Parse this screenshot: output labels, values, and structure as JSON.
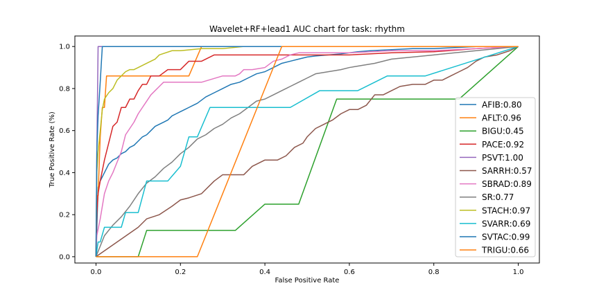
{
  "chart_data": {
    "type": "line",
    "title": "Wavelet+RF+lead1 AUC chart for task: rhythm",
    "xlabel": "False Positive Rate",
    "ylabel": "True Positive Rate (%)",
    "xlim": [
      -0.05,
      1.05
    ],
    "ylim": [
      -0.03,
      1.05
    ],
    "xticks": [
      0.0,
      0.2,
      0.4,
      0.6,
      0.8,
      1.0
    ],
    "xtick_labels": [
      "0.0",
      "0.2",
      "0.4",
      "0.6",
      "0.8",
      "1.0"
    ],
    "yticks": [
      0.0,
      0.2,
      0.4,
      0.6,
      0.8,
      1.0
    ],
    "ytick_labels": [
      "0.0",
      "0.2",
      "0.4",
      "0.6",
      "0.8",
      "1.0"
    ],
    "grid": false,
    "legend_position": "right",
    "series": [
      {
        "name": "AFIB:0.80",
        "color": "#1f77b4",
        "x": [
          0,
          0.005,
          0.01,
          0.015,
          0.02,
          0.03,
          0.04,
          0.05,
          0.06,
          0.07,
          0.08,
          0.09,
          0.1,
          0.11,
          0.12,
          0.13,
          0.14,
          0.15,
          0.16,
          0.17,
          0.18,
          0.19,
          0.2,
          0.21,
          0.22,
          0.23,
          0.24,
          0.26,
          0.28,
          0.3,
          0.32,
          0.34,
          0.36,
          0.38,
          0.4,
          0.42,
          0.44,
          0.46,
          0.48,
          0.5,
          0.52,
          0.55,
          0.58,
          0.6,
          0.62,
          0.65,
          0.7,
          0.75,
          0.8,
          0.85,
          0.9,
          0.95,
          1.0
        ],
        "y": [
          0,
          0.33,
          0.36,
          0.38,
          0.4,
          0.44,
          0.46,
          0.47,
          0.49,
          0.5,
          0.52,
          0.53,
          0.55,
          0.57,
          0.58,
          0.6,
          0.62,
          0.63,
          0.64,
          0.65,
          0.67,
          0.68,
          0.69,
          0.7,
          0.71,
          0.72,
          0.73,
          0.76,
          0.78,
          0.8,
          0.82,
          0.83,
          0.85,
          0.87,
          0.88,
          0.9,
          0.92,
          0.93,
          0.94,
          0.95,
          0.955,
          0.96,
          0.965,
          0.97,
          0.975,
          0.98,
          0.985,
          0.99,
          0.99,
          0.995,
          1.0,
          1.0,
          1.0
        ]
      },
      {
        "name": "AFLT:0.96",
        "color": "#ff7f0e",
        "x": [
          0,
          0.002,
          0.005,
          0.01,
          0.015,
          0.02,
          0.025,
          0.22,
          0.25,
          1.0
        ],
        "y": [
          0,
          0.29,
          0.29,
          0.57,
          0.71,
          0.71,
          0.86,
          0.86,
          1.0,
          1.0
        ]
      },
      {
        "name": "BIGU:0.45",
        "color": "#2ca02c",
        "x": [
          0,
          0.1,
          0.12,
          0.33,
          0.4,
          0.48,
          0.57,
          0.86,
          1.0
        ],
        "y": [
          0,
          0,
          0.125,
          0.125,
          0.25,
          0.25,
          0.75,
          0.75,
          1.0
        ]
      },
      {
        "name": "PACE:0.92",
        "color": "#d62728",
        "x": [
          0,
          0.002,
          0.005,
          0.01,
          0.02,
          0.03,
          0.04,
          0.05,
          0.06,
          0.07,
          0.08,
          0.09,
          0.1,
          0.11,
          0.12,
          0.13,
          0.15,
          0.17,
          0.2,
          0.22,
          0.25,
          0.28,
          0.3,
          0.35,
          0.4,
          0.5,
          0.6,
          0.7,
          0.8,
          0.9,
          1.0
        ],
        "y": [
          0,
          0.2,
          0.3,
          0.36,
          0.46,
          0.54,
          0.62,
          0.64,
          0.71,
          0.71,
          0.75,
          0.75,
          0.79,
          0.82,
          0.82,
          0.86,
          0.86,
          0.89,
          0.89,
          0.93,
          0.93,
          0.96,
          0.96,
          0.96,
          0.96,
          0.96,
          0.96,
          0.97,
          0.975,
          0.99,
          1.0
        ]
      },
      {
        "name": "PSVT:1.00",
        "color": "#9467bd",
        "x": [
          0,
          0.002,
          0.005,
          1.0
        ],
        "y": [
          0,
          0.5,
          1.0,
          1.0
        ]
      },
      {
        "name": "SARRH:0.57",
        "color": "#8c564b",
        "x": [
          0,
          0.05,
          0.1,
          0.12,
          0.15,
          0.18,
          0.2,
          0.22,
          0.25,
          0.28,
          0.3,
          0.33,
          0.35,
          0.37,
          0.4,
          0.43,
          0.45,
          0.47,
          0.49,
          0.5,
          0.52,
          0.54,
          0.56,
          0.58,
          0.6,
          0.62,
          0.64,
          0.66,
          0.68,
          0.7,
          0.72,
          0.75,
          0.78,
          0.8,
          0.82,
          0.84,
          0.86,
          0.88,
          0.9,
          0.92,
          0.95,
          0.98,
          1.0
        ],
        "y": [
          0,
          0.07,
          0.14,
          0.18,
          0.2,
          0.24,
          0.27,
          0.28,
          0.3,
          0.36,
          0.39,
          0.39,
          0.39,
          0.43,
          0.46,
          0.46,
          0.48,
          0.52,
          0.54,
          0.57,
          0.61,
          0.63,
          0.65,
          0.68,
          0.7,
          0.7,
          0.72,
          0.77,
          0.77,
          0.79,
          0.81,
          0.82,
          0.82,
          0.84,
          0.84,
          0.86,
          0.88,
          0.9,
          0.93,
          0.95,
          0.96,
          0.98,
          1.0
        ]
      },
      {
        "name": "SBRAD:0.89",
        "color": "#e377c2",
        "x": [
          0,
          0.002,
          0.005,
          0.01,
          0.02,
          0.03,
          0.04,
          0.05,
          0.06,
          0.07,
          0.08,
          0.09,
          0.1,
          0.11,
          0.12,
          0.13,
          0.14,
          0.15,
          0.16,
          0.2,
          0.25,
          0.3,
          0.33,
          0.34,
          0.35,
          0.37,
          0.4,
          0.42,
          0.44,
          0.46,
          0.48,
          0.5,
          0.6,
          0.7,
          0.8,
          0.9,
          1.0
        ],
        "y": [
          0,
          0.1,
          0.13,
          0.18,
          0.3,
          0.36,
          0.4,
          0.45,
          0.5,
          0.58,
          0.61,
          0.64,
          0.68,
          0.71,
          0.74,
          0.77,
          0.79,
          0.81,
          0.83,
          0.83,
          0.83,
          0.86,
          0.86,
          0.87,
          0.89,
          0.89,
          0.9,
          0.93,
          0.94,
          0.96,
          0.97,
          0.97,
          0.97,
          0.98,
          0.98,
          0.99,
          1.0
        ]
      },
      {
        "name": "SR:0.77",
        "color": "#7f7f7f",
        "x": [
          0,
          0.02,
          0.04,
          0.06,
          0.08,
          0.1,
          0.12,
          0.14,
          0.16,
          0.18,
          0.2,
          0.22,
          0.24,
          0.26,
          0.28,
          0.3,
          0.32,
          0.34,
          0.36,
          0.38,
          0.4,
          0.42,
          0.44,
          0.46,
          0.48,
          0.5,
          0.52,
          0.55,
          0.58,
          0.6,
          0.63,
          0.66,
          0.7,
          0.75,
          0.8,
          0.85,
          0.9,
          0.95,
          1.0
        ],
        "y": [
          0,
          0.1,
          0.15,
          0.19,
          0.24,
          0.3,
          0.35,
          0.38,
          0.42,
          0.45,
          0.49,
          0.52,
          0.56,
          0.58,
          0.61,
          0.63,
          0.66,
          0.68,
          0.71,
          0.74,
          0.75,
          0.77,
          0.79,
          0.81,
          0.83,
          0.85,
          0.87,
          0.88,
          0.89,
          0.9,
          0.91,
          0.92,
          0.94,
          0.95,
          0.96,
          0.97,
          0.98,
          0.99,
          1.0
        ]
      },
      {
        "name": "STACH:0.97",
        "color": "#bcbd22",
        "x": [
          0,
          0.002,
          0.005,
          0.01,
          0.015,
          0.02,
          0.03,
          0.04,
          0.05,
          0.06,
          0.07,
          0.08,
          0.09,
          0.1,
          0.12,
          0.14,
          0.15,
          0.18,
          0.2,
          0.25,
          0.3,
          0.35,
          0.4,
          0.5,
          0.6,
          0.7,
          0.8,
          0.9,
          1.0
        ],
        "y": [
          0,
          0.4,
          0.5,
          0.6,
          0.7,
          0.75,
          0.78,
          0.8,
          0.84,
          0.86,
          0.88,
          0.89,
          0.89,
          0.9,
          0.92,
          0.94,
          0.96,
          0.98,
          0.98,
          0.99,
          0.99,
          1.0,
          1.0,
          1.0,
          1.0,
          1.0,
          1.0,
          1.0,
          1.0
        ]
      },
      {
        "name": "SVARR:0.69",
        "color": "#17becf",
        "x": [
          0,
          0.005,
          0.01,
          0.02,
          0.06,
          0.07,
          0.1,
          0.12,
          0.17,
          0.2,
          0.22,
          0.24,
          0.27,
          0.31,
          0.46,
          0.53,
          0.62,
          0.69,
          0.78,
          1.0
        ],
        "y": [
          0,
          0.07,
          0.07,
          0.14,
          0.14,
          0.21,
          0.21,
          0.36,
          0.36,
          0.43,
          0.57,
          0.57,
          0.71,
          0.71,
          0.71,
          0.79,
          0.79,
          0.86,
          0.86,
          1.0
        ]
      },
      {
        "name": "SVTAC:0.99",
        "color": "#1f77b4",
        "x": [
          0,
          0.002,
          0.005,
          0.01,
          0.015,
          1.0
        ],
        "y": [
          0,
          0.5,
          0.67,
          0.83,
          1.0,
          1.0
        ]
      },
      {
        "name": "TRIGU:0.66",
        "color": "#ff7f0e",
        "x": [
          0,
          0.24,
          0.43,
          0.44,
          1.0
        ],
        "y": [
          0,
          0,
          0.95,
          1.0,
          1.0
        ]
      }
    ]
  }
}
